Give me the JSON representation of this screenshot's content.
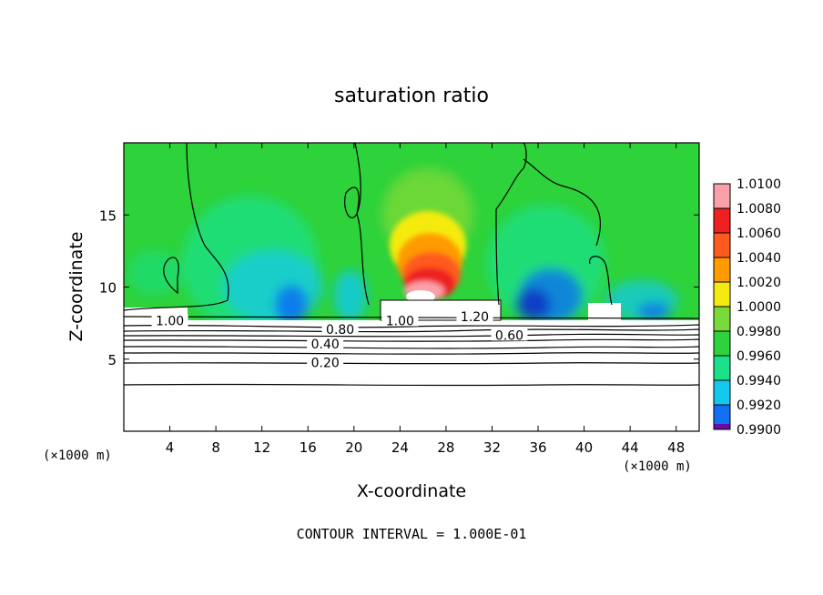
{
  "chart_data": {
    "type": "heatmap",
    "title": "saturation ratio",
    "xlabel": "X-coordinate",
    "ylabel": "Z-coordinate",
    "x_unit_note": "(×1000 m)",
    "y_unit_note": "(×1000 m)",
    "xlim": [
      0,
      50
    ],
    "ylim": [
      0,
      20
    ],
    "x_ticks": [
      4,
      8,
      12,
      16,
      20,
      24,
      28,
      32,
      36,
      40,
      44,
      48
    ],
    "y_ticks": [
      5,
      10,
      15
    ],
    "footer": "CONTOUR INTERVAL = 1.000E-01",
    "colorbar": {
      "levels": [
        {
          "value": "1.0100",
          "color": "#f9a0a8"
        },
        {
          "value": "1.0080",
          "color": "#ee2020"
        },
        {
          "value": "1.0060",
          "color": "#ff5a1e"
        },
        {
          "value": "1.0040",
          "color": "#ff9a00"
        },
        {
          "value": "1.0020",
          "color": "#f5ea10"
        },
        {
          "value": "1.0000",
          "color": "#7ad93a"
        },
        {
          "value": "0.9980",
          "color": "#2ed23a"
        },
        {
          "value": "0.9960",
          "color": "#1ae08a"
        },
        {
          "value": "0.9940",
          "color": "#12c8ee"
        },
        {
          "value": "0.9920",
          "color": "#1270f2"
        },
        {
          "value": "0.9900",
          "color": "#1010b8"
        }
      ],
      "bottom_color": "#6a0aa8"
    },
    "contour_labels": [
      {
        "text": "1.00",
        "x": 4.0,
        "z": 7.6
      },
      {
        "text": "0.80",
        "x": 18.8,
        "z": 7.0
      },
      {
        "text": "1.00",
        "x": 24.0,
        "z": 7.6
      },
      {
        "text": "1.20",
        "x": 30.5,
        "z": 7.9
      },
      {
        "text": "0.60",
        "x": 33.5,
        "z": 6.6
      },
      {
        "text": "0.40",
        "x": 17.5,
        "z": 6.0
      },
      {
        "text": "0.20",
        "x": 17.5,
        "z": 4.7
      }
    ]
  }
}
